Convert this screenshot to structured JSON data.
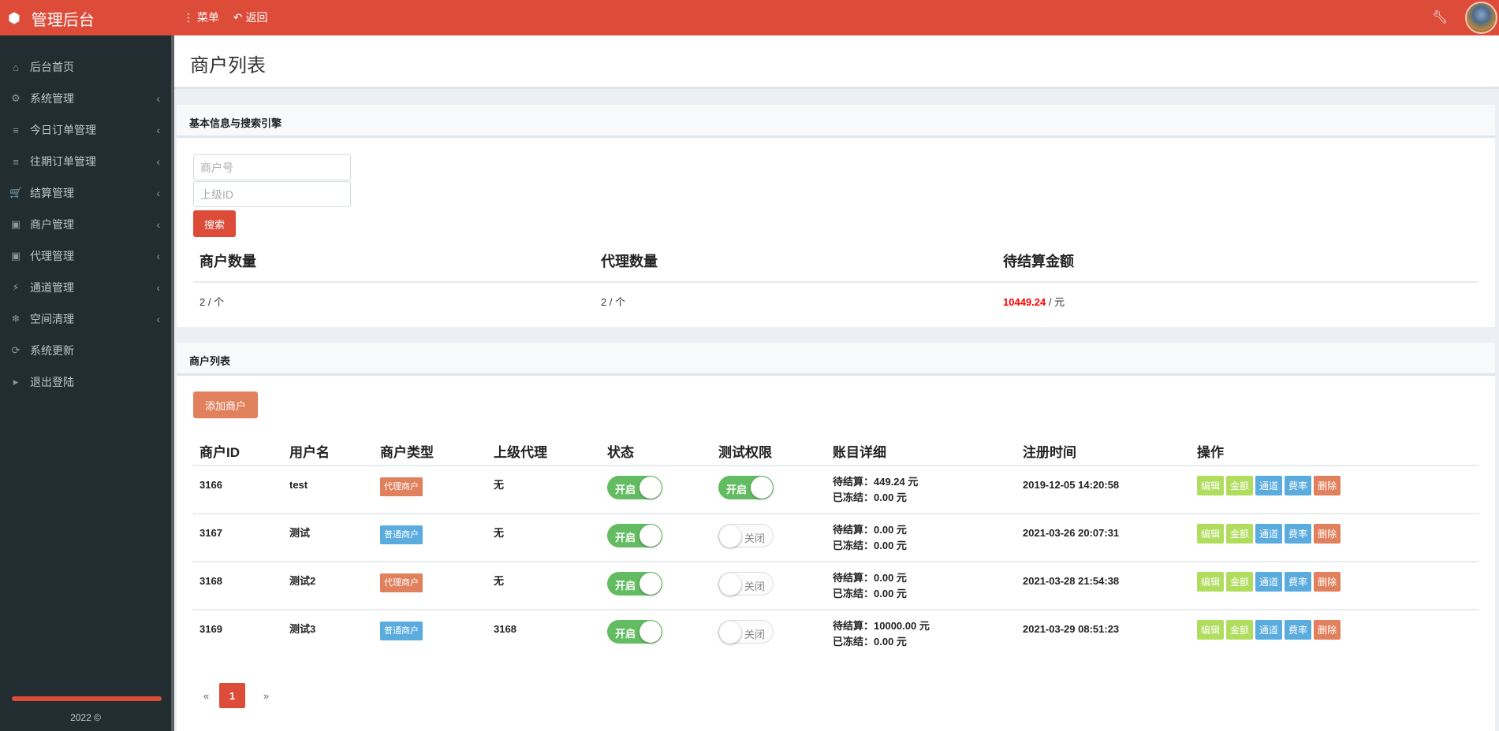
{
  "header": {
    "title": "管理后台",
    "menu_label": "菜单",
    "back_label": "返回"
  },
  "sidebar": {
    "items": [
      {
        "label": "后台首页",
        "icon": "home-icon",
        "glyph": "⌂",
        "chev": false
      },
      {
        "label": "系统管理",
        "icon": "gears-icon",
        "glyph": "⚙",
        "chev": true
      },
      {
        "label": "今日订单管理",
        "icon": "list-icon",
        "glyph": "≡",
        "chev": true
      },
      {
        "label": "往期订单管理",
        "icon": "list-icon",
        "glyph": "≡",
        "chev": true
      },
      {
        "label": "结算管理",
        "icon": "cart-icon",
        "glyph": "🛒",
        "chev": true
      },
      {
        "label": "商户管理",
        "icon": "contact-book-icon",
        "glyph": "▣",
        "chev": true
      },
      {
        "label": "代理管理",
        "icon": "contact-book-icon",
        "glyph": "▣",
        "chev": true
      },
      {
        "label": "通道管理",
        "icon": "plug-icon",
        "glyph": "⚡",
        "chev": true
      },
      {
        "label": "空间清理",
        "icon": "snowflake-icon",
        "glyph": "❄",
        "chev": true
      },
      {
        "label": "系统更新",
        "icon": "refresh-icon",
        "glyph": "⟳",
        "chev": false
      },
      {
        "label": "退出登陆",
        "icon": "exit-icon",
        "glyph": "▸",
        "chev": false
      }
    ],
    "footer": "2022 ©"
  },
  "page": {
    "title": "商户列表"
  },
  "search_box": {
    "title": "基本信息与搜索引擎",
    "merchant_placeholder": "商户号",
    "parent_placeholder": "上级ID",
    "search_label": "搜索",
    "stats": [
      {
        "label": "商户数量",
        "value": "2",
        "unit": "/ 个"
      },
      {
        "label": "代理数量",
        "value": "2",
        "unit": "/ 个"
      },
      {
        "label": "待结算金额",
        "value": "10449.24",
        "unit": "/ 元"
      }
    ]
  },
  "list_box": {
    "title": "商户列表",
    "add_label": "添加商户",
    "columns": [
      "商户ID",
      "用户名",
      "商户类型",
      "上级代理",
      "状态",
      "测试权限",
      "账目详细",
      "注册时间",
      "操作"
    ],
    "rows": [
      {
        "id": "3166",
        "user": "test",
        "type": "代理商户",
        "type_color": "#e0805c",
        "parent": "无",
        "status": "开启",
        "status_on": true,
        "test": "开启",
        "test_on": true,
        "pending": "待结算：449.24 元",
        "frozen": "已冻结：0.00 元",
        "time": "2019-12-05 14:20:58"
      },
      {
        "id": "3167",
        "user": "测试",
        "type": "普通商户",
        "type_color": "#5aacdf",
        "parent": "无",
        "status": "开启",
        "status_on": true,
        "test": "关闭",
        "test_on": false,
        "pending": "待结算：0.00 元",
        "frozen": "已冻结：0.00 元",
        "time": "2021-03-26 20:07:31"
      },
      {
        "id": "3168",
        "user": "测试2",
        "type": "代理商户",
        "type_color": "#e0805c",
        "parent": "无",
        "status": "开启",
        "status_on": true,
        "test": "关闭",
        "test_on": false,
        "pending": "待结算：0.00 元",
        "frozen": "已冻结：0.00 元",
        "time": "2021-03-28 21:54:38"
      },
      {
        "id": "3169",
        "user": "测试3",
        "type": "普通商户",
        "type_color": "#5aacdf",
        "parent": "3168",
        "status": "开启",
        "status_on": true,
        "test": "关闭",
        "test_on": false,
        "pending": "待结算：10000.00 元",
        "frozen": "已冻结：0.00 元",
        "time": "2021-03-29 08:51:23"
      }
    ],
    "actions": [
      {
        "label": "编辑",
        "color": "#b1dd5f"
      },
      {
        "label": "金额",
        "color": "#b1dd5f"
      },
      {
        "label": "通道",
        "color": "#5aacdf"
      },
      {
        "label": "费率",
        "color": "#5aacdf"
      },
      {
        "label": "删除",
        "color": "#e0805c"
      }
    ],
    "pagination": {
      "prev": "«",
      "current": "1",
      "next": "»"
    }
  },
  "colors": {
    "brand": "#dd4b39",
    "sidebar": "#222d32",
    "toggle_on": "#63bc61",
    "amount_red": "#ff0000"
  }
}
